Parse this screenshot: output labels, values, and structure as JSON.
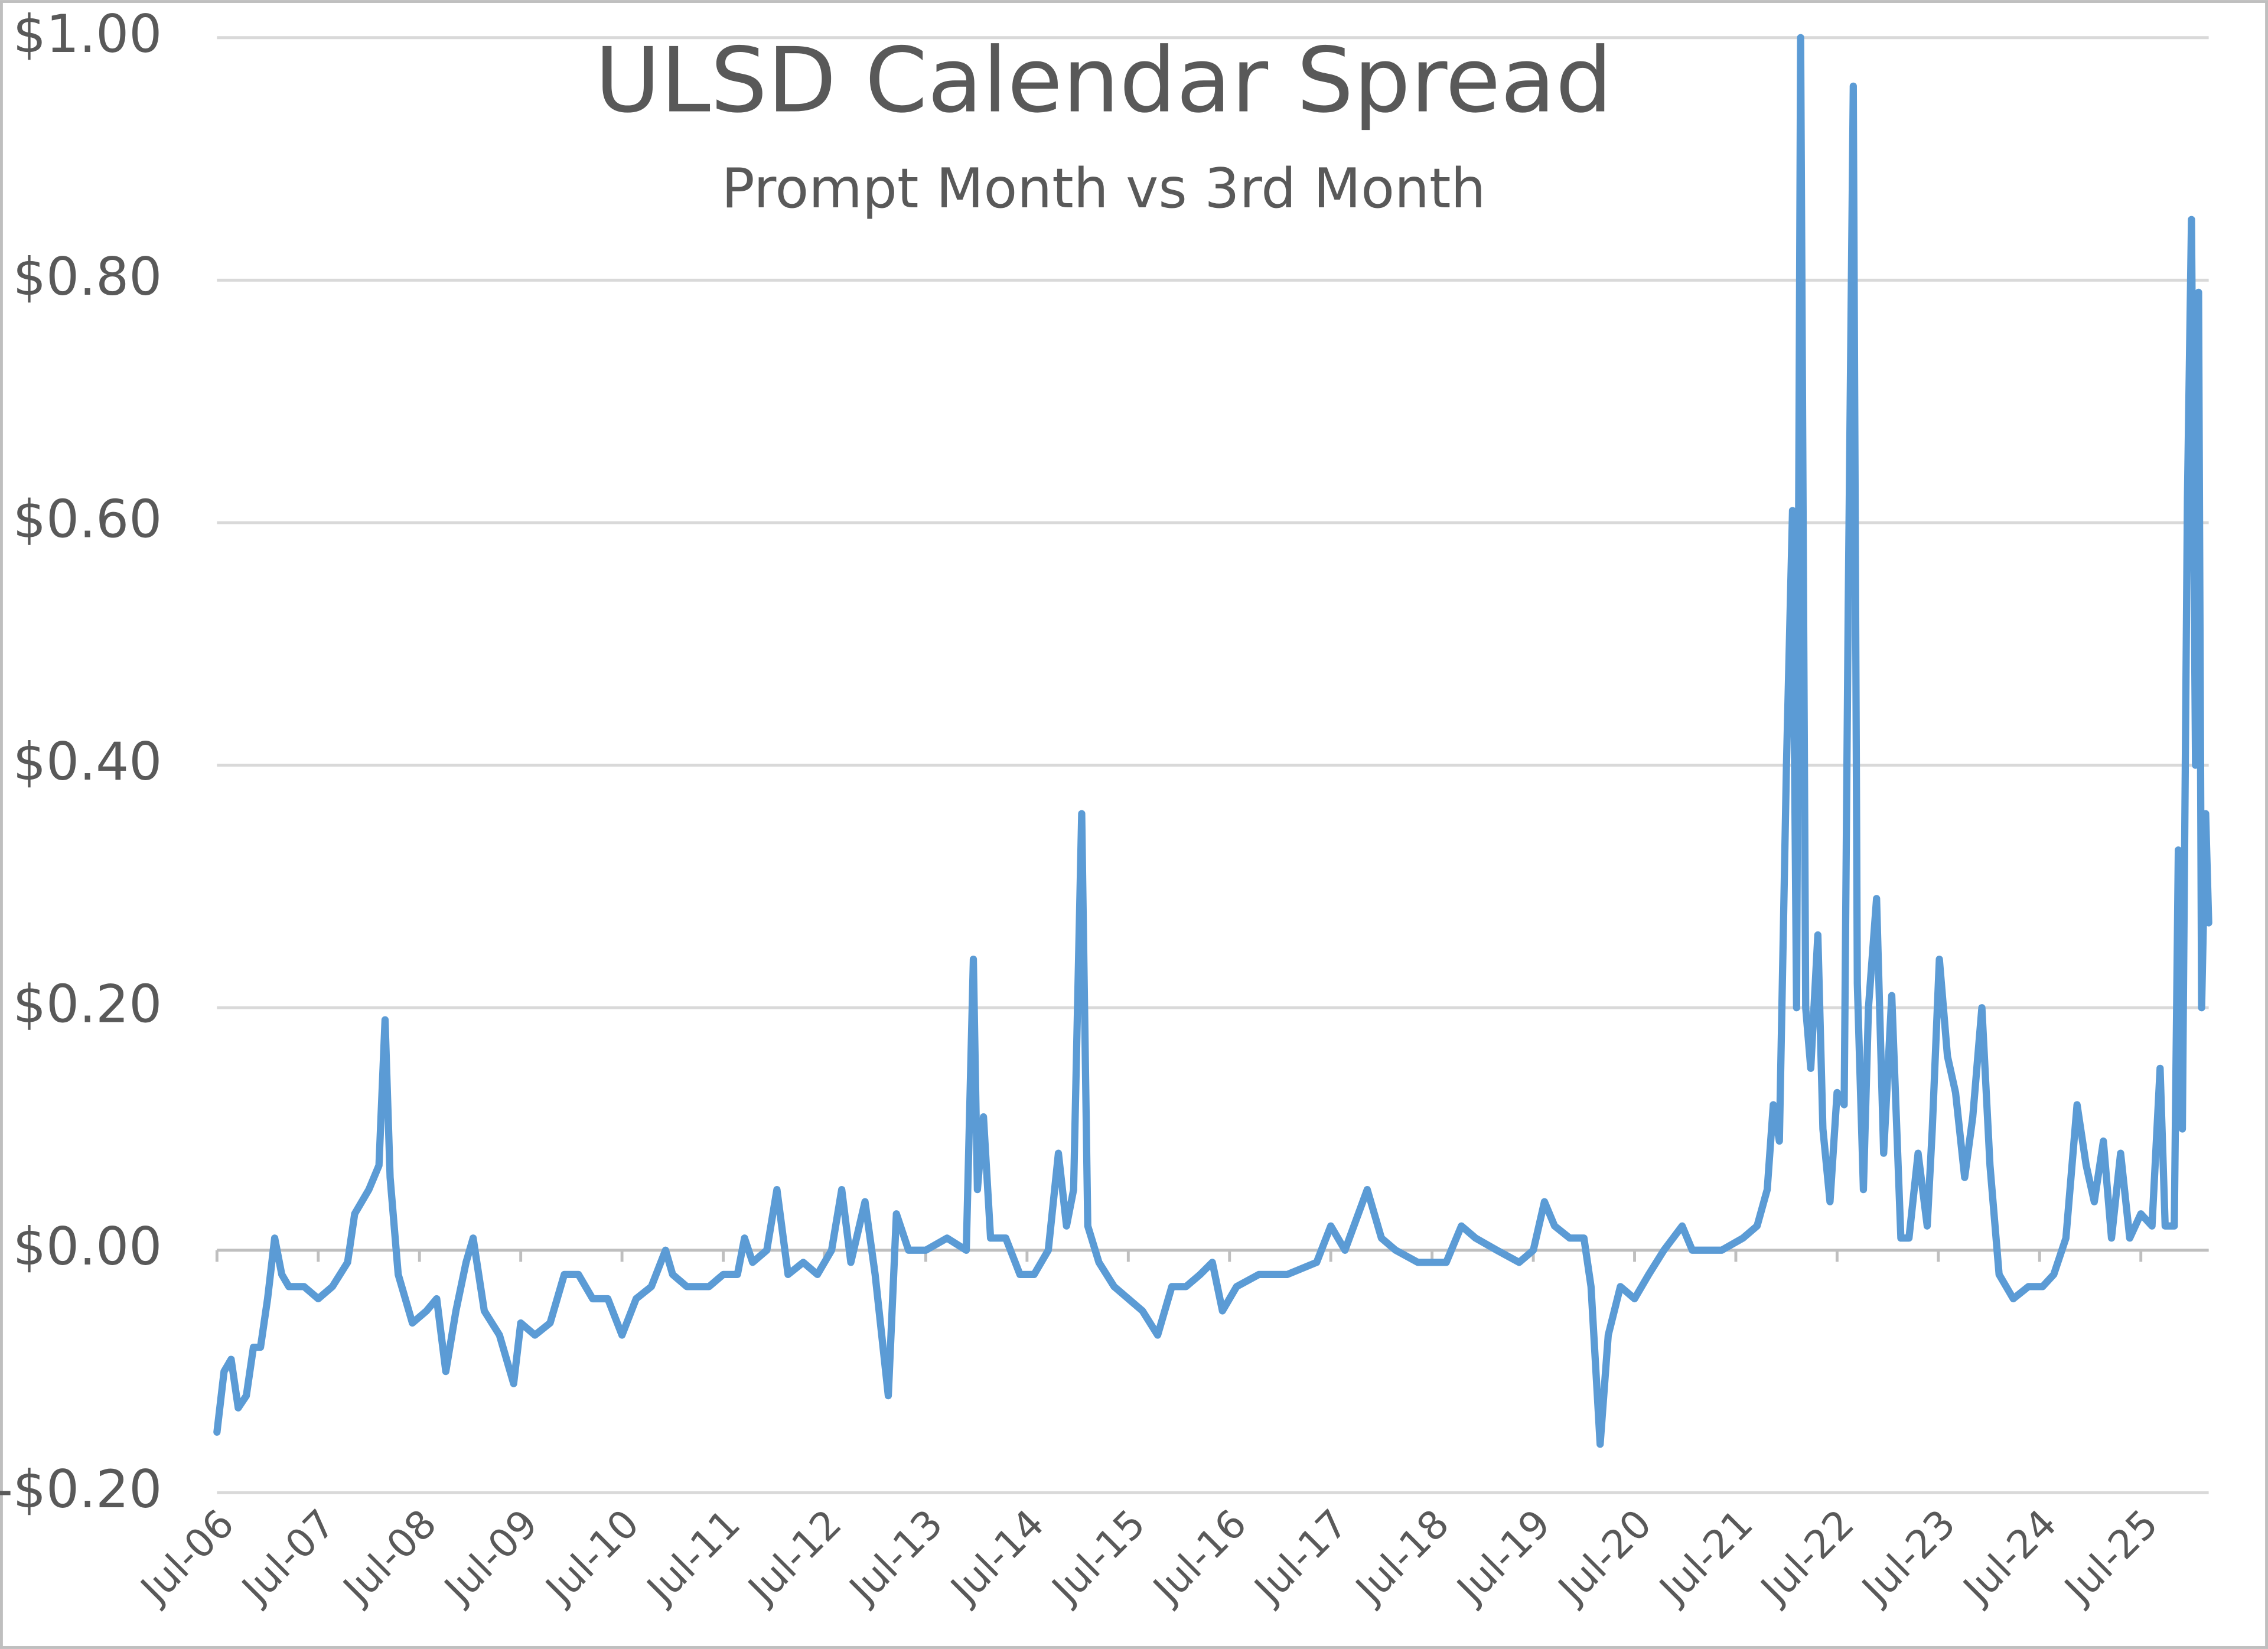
{
  "chart_data": {
    "type": "line",
    "title": "ULSD Calendar Spread",
    "subtitle": "Prompt Month vs 3rd Month",
    "x": [
      2006.5,
      2006.57,
      2006.64,
      2006.71,
      2006.79,
      2006.86,
      2006.93,
      2007.0,
      2007.07,
      2007.14,
      2007.21,
      2007.36,
      2007.5,
      2007.64,
      2007.79,
      2007.86,
      2008.0,
      2008.1,
      2008.16,
      2008.21,
      2008.29,
      2008.43,
      2008.57,
      2008.67,
      2008.76,
      2008.86,
      2008.96,
      2009.03,
      2009.14,
      2009.29,
      2009.43,
      2009.5,
      2009.64,
      2009.79,
      2009.93,
      2010.07,
      2010.21,
      2010.36,
      2010.5,
      2010.64,
      2010.79,
      2010.93,
      2011.0,
      2011.14,
      2011.36,
      2011.5,
      2011.64,
      2011.71,
      2011.79,
      2011.93,
      2012.03,
      2012.14,
      2012.29,
      2012.43,
      2012.57,
      2012.67,
      2012.76,
      2012.9,
      2013.0,
      2013.13,
      2013.21,
      2013.33,
      2013.5,
      2013.71,
      2013.9,
      2013.97,
      2014.01,
      2014.07,
      2014.14,
      2014.29,
      2014.43,
      2014.57,
      2014.71,
      2014.81,
      2014.89,
      2014.96,
      2015.04,
      2015.1,
      2015.21,
      2015.36,
      2015.5,
      2015.64,
      2015.79,
      2015.93,
      2016.07,
      2016.21,
      2016.33,
      2016.43,
      2016.57,
      2016.79,
      2017.07,
      2017.36,
      2017.5,
      2017.64,
      2017.86,
      2018.0,
      2018.14,
      2018.36,
      2018.64,
      2018.79,
      2018.93,
      2019.14,
      2019.36,
      2019.5,
      2019.61,
      2019.71,
      2019.86,
      2020.0,
      2020.07,
      2020.16,
      2020.24,
      2020.36,
      2020.5,
      2020.64,
      2020.79,
      2020.97,
      2021.07,
      2021.36,
      2021.57,
      2021.71,
      2021.81,
      2021.87,
      2021.93,
      2022.0,
      2022.06,
      2022.1,
      2022.14,
      2022.19,
      2022.24,
      2022.31,
      2022.36,
      2022.43,
      2022.5,
      2022.57,
      2022.61,
      2022.66,
      2022.7,
      2022.76,
      2022.81,
      2022.89,
      2022.96,
      2023.04,
      2023.13,
      2023.21,
      2023.3,
      2023.39,
      2023.44,
      2023.51,
      2023.59,
      2023.67,
      2023.76,
      2023.84,
      2023.93,
      2024.01,
      2024.1,
      2024.24,
      2024.39,
      2024.53,
      2024.64,
      2024.76,
      2024.87,
      2024.96,
      2025.04,
      2025.13,
      2025.21,
      2025.3,
      2025.39,
      2025.5,
      2025.61,
      2025.69,
      2025.74,
      2025.83,
      2025.87,
      2025.91,
      2025.96,
      2026.0,
      2026.04,
      2026.07,
      2026.1,
      2026.14,
      2026.17
    ],
    "series": [
      {
        "name": "ULSD Calendar Spread",
        "color": "#5b9bd5",
        "values": [
          -0.15,
          -0.1,
          -0.09,
          -0.13,
          -0.12,
          -0.08,
          -0.08,
          -0.04,
          0.01,
          -0.02,
          -0.03,
          -0.03,
          -0.04,
          -0.03,
          -0.01,
          0.03,
          0.05,
          0.07,
          0.19,
          0.06,
          -0.02,
          -0.06,
          -0.05,
          -0.04,
          -0.1,
          -0.05,
          -0.01,
          0.01,
          -0.05,
          -0.07,
          -0.11,
          -0.06,
          -0.07,
          -0.06,
          -0.02,
          -0.02,
          -0.04,
          -0.04,
          -0.07,
          -0.04,
          -0.03,
          0.0,
          -0.02,
          -0.03,
          -0.03,
          -0.02,
          -0.02,
          0.01,
          -0.01,
          0.0,
          0.05,
          -0.02,
          -0.01,
          -0.02,
          0.0,
          0.05,
          -0.01,
          0.04,
          -0.02,
          -0.12,
          0.03,
          0.0,
          0.0,
          0.01,
          0.0,
          0.24,
          0.05,
          0.11,
          0.01,
          0.01,
          -0.02,
          -0.02,
          0.0,
          0.08,
          0.02,
          0.05,
          0.36,
          0.02,
          -0.01,
          -0.03,
          -0.04,
          -0.05,
          -0.07,
          -0.03,
          -0.03,
          -0.02,
          -0.01,
          -0.05,
          -0.03,
          -0.02,
          -0.02,
          -0.01,
          0.02,
          0.0,
          0.05,
          0.01,
          0.0,
          -0.01,
          -0.01,
          0.02,
          0.01,
          0.0,
          -0.01,
          0.0,
          0.04,
          0.02,
          0.01,
          0.01,
          -0.03,
          -0.16,
          -0.07,
          -0.03,
          -0.04,
          -0.02,
          0.0,
          0.02,
          0.0,
          0.0,
          0.01,
          0.02,
          0.05,
          0.12,
          0.09,
          0.4,
          0.61,
          0.2,
          1.0,
          0.2,
          0.15,
          0.26,
          0.1,
          0.04,
          0.13,
          0.12,
          0.53,
          0.96,
          0.22,
          0.05,
          0.2,
          0.29,
          0.08,
          0.21,
          0.01,
          0.01,
          0.08,
          0.02,
          0.1,
          0.24,
          0.16,
          0.13,
          0.06,
          0.11,
          0.2,
          0.07,
          -0.02,
          -0.04,
          -0.03,
          -0.03,
          -0.02,
          0.01,
          0.12,
          0.07,
          0.04,
          0.09,
          0.01,
          0.08,
          0.01,
          0.03,
          0.02,
          0.15,
          0.02,
          0.02,
          0.33,
          0.1,
          0.62,
          0.85,
          0.4,
          0.79,
          0.2,
          0.36,
          0.27
        ]
      }
    ],
    "xlim": [
      2006.5,
      2026.17
    ],
    "xticks": [
      {
        "value": 2006.5,
        "label": "Jul-06"
      },
      {
        "value": 2007.5,
        "label": "Jul-07"
      },
      {
        "value": 2008.5,
        "label": "Jul-08"
      },
      {
        "value": 2009.5,
        "label": "Jul-09"
      },
      {
        "value": 2010.5,
        "label": "Jul-10"
      },
      {
        "value": 2011.5,
        "label": "Jul-11"
      },
      {
        "value": 2012.5,
        "label": "Jul-12"
      },
      {
        "value": 2013.5,
        "label": "Jul-13"
      },
      {
        "value": 2014.5,
        "label": "Jul-14"
      },
      {
        "value": 2015.5,
        "label": "Jul-15"
      },
      {
        "value": 2016.5,
        "label": "Jul-16"
      },
      {
        "value": 2017.5,
        "label": "Jul-17"
      },
      {
        "value": 2018.5,
        "label": "Jul-18"
      },
      {
        "value": 2019.5,
        "label": "Jul-19"
      },
      {
        "value": 2020.5,
        "label": "Jul-20"
      },
      {
        "value": 2021.5,
        "label": "Jul-21"
      },
      {
        "value": 2022.5,
        "label": "Jul-22"
      },
      {
        "value": 2023.5,
        "label": "Jul-23"
      },
      {
        "value": 2024.5,
        "label": "Jul-24"
      },
      {
        "value": 2025.5,
        "label": "Jul-25"
      }
    ],
    "ylim": [
      -0.2,
      1.0
    ],
    "yticks": [
      {
        "value": -0.2,
        "label": "-$0.20"
      },
      {
        "value": 0,
        "label": "$0.00"
      },
      {
        "value": 0.2,
        "label": "$0.20"
      },
      {
        "value": 0.4,
        "label": "$0.40"
      },
      {
        "value": 0.6,
        "label": "$0.60"
      },
      {
        "value": 0.8,
        "label": "$0.80"
      },
      {
        "value": 1.0,
        "label": "$1.00"
      }
    ],
    "grid": true
  }
}
